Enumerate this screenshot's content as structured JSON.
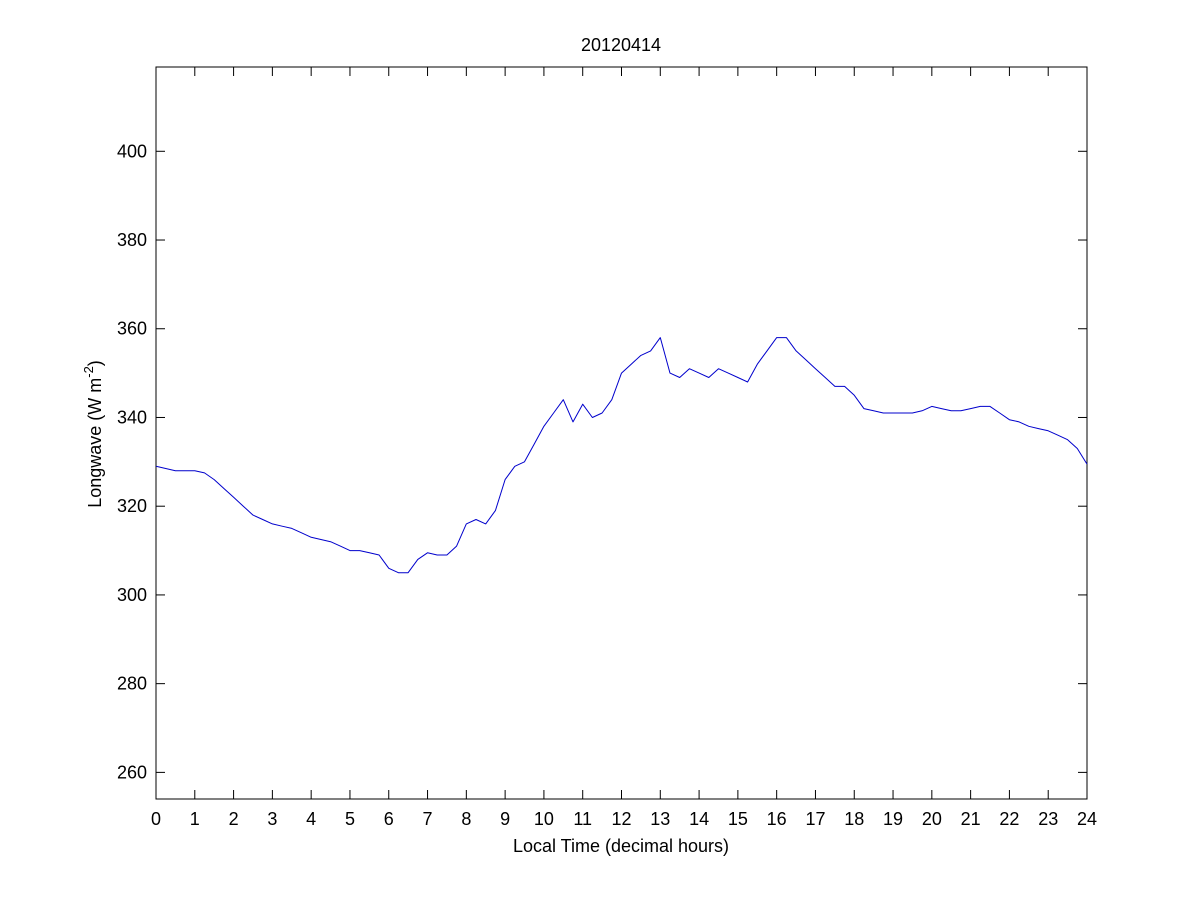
{
  "chart_data": {
    "type": "line",
    "title": "20120414",
    "xlabel": "Local Time (decimal hours)",
    "ylabel": "Longwave (W m",
    "ylabel_superscript": "-2",
    "ylabel_suffix": ")",
    "xlim": [
      0,
      24
    ],
    "ylim": [
      254,
      419
    ],
    "xticks": [
      0,
      1,
      2,
      3,
      4,
      5,
      6,
      7,
      8,
      9,
      10,
      11,
      12,
      13,
      14,
      15,
      16,
      17,
      18,
      19,
      20,
      21,
      22,
      23,
      24
    ],
    "yticks": [
      260,
      280,
      300,
      320,
      340,
      360,
      380,
      400
    ],
    "grid": false,
    "legend": "none",
    "colors": {
      "line": "#0000cc",
      "axes": "#000000",
      "background": "#ffffff"
    },
    "series": [
      {
        "x": [
          0.0,
          0.25,
          0.5,
          0.75,
          1.0,
          1.25,
          1.5,
          1.75,
          2.0,
          2.25,
          2.5,
          2.75,
          3.0,
          3.25,
          3.5,
          3.75,
          4.0,
          4.25,
          4.5,
          4.75,
          5.0,
          5.25,
          5.5,
          5.75,
          6.0,
          6.25,
          6.5,
          6.75,
          7.0,
          7.25,
          7.5,
          7.75,
          8.0,
          8.25,
          8.5,
          8.75,
          9.0,
          9.25,
          9.5,
          9.75,
          10.0,
          10.25,
          10.5,
          10.75,
          11.0,
          11.25,
          11.5,
          11.75,
          12.0,
          12.25,
          12.5,
          12.75,
          13.0,
          13.25,
          13.5,
          13.75,
          14.0,
          14.25,
          14.5,
          14.75,
          15.0,
          15.25,
          15.5,
          15.75,
          16.0,
          16.25,
          16.5,
          16.75,
          17.0,
          17.25,
          17.5,
          17.75,
          18.0,
          18.25,
          18.5,
          18.75,
          19.0,
          19.25,
          19.5,
          19.75,
          20.0,
          20.25,
          20.5,
          20.75,
          21.0,
          21.25,
          21.5,
          21.75,
          22.0,
          22.25,
          22.5,
          22.75,
          23.0,
          23.25,
          23.5,
          23.75,
          24.0
        ],
        "y": [
          329,
          328.5,
          328,
          328,
          328,
          327.5,
          326,
          324,
          322,
          320,
          318,
          317,
          316,
          315.5,
          315,
          314,
          313,
          312.5,
          312,
          311,
          310,
          310,
          309.5,
          309,
          306,
          305,
          305,
          308,
          309.5,
          309,
          309,
          311,
          316,
          317,
          316,
          319,
          326,
          329,
          330,
          334,
          338,
          341,
          344,
          339,
          343,
          340,
          341,
          344,
          350,
          352,
          354,
          355,
          358,
          350,
          349,
          351,
          350,
          349,
          351,
          350,
          349,
          348,
          352,
          355,
          358,
          358,
          355,
          353,
          351,
          349,
          347,
          347,
          345,
          342,
          341.5,
          341,
          341,
          341,
          341,
          341.5,
          342.5,
          342,
          341.5,
          341.5,
          342,
          342.5,
          342.5,
          341,
          339.5,
          339,
          338,
          337.5,
          337,
          336,
          335,
          333,
          329.5
        ]
      }
    ]
  }
}
